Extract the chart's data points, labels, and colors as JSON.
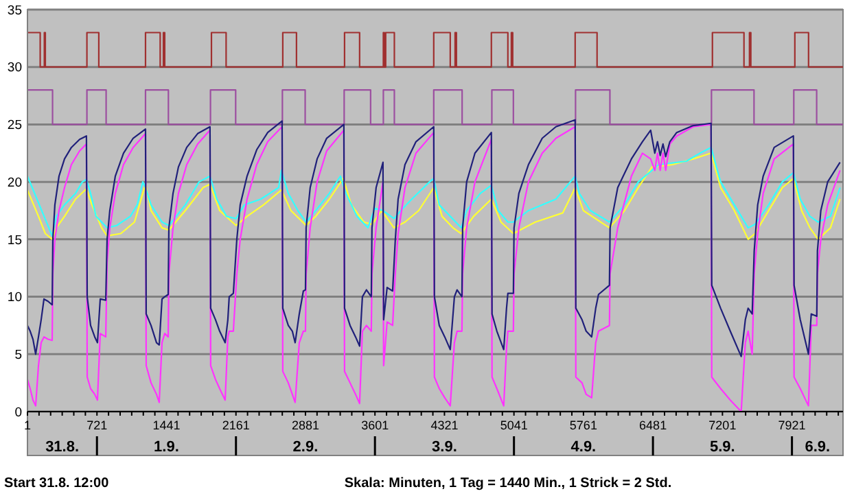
{
  "chart_data": {
    "type": "line",
    "xlim": [
      1,
      8450
    ],
    "ylim": [
      0,
      35
    ],
    "yticks": [
      0,
      5,
      10,
      15,
      20,
      25,
      30,
      35
    ],
    "xticks": [
      1,
      {
        "value": 121,
        "label": null
      },
      {
        "value": 241,
        "label": null
      },
      {
        "value": 361,
        "label": null
      },
      {
        "value": 481,
        "label": null
      },
      {
        "value": 601,
        "label": null
      },
      721,
      {
        "value": 841,
        "label": null
      },
      {
        "value": 961,
        "label": null
      },
      {
        "value": 1081,
        "label": null
      },
      {
        "value": 1201,
        "label": null
      },
      {
        "value": 1321,
        "label": null
      },
      1441,
      {
        "value": 1561,
        "label": null
      },
      {
        "value": 1681,
        "label": null
      },
      {
        "value": 1801,
        "label": null
      },
      {
        "value": 1921,
        "label": null
      },
      {
        "value": 2041,
        "label": null
      },
      2161,
      {
        "value": 2281,
        "label": null
      },
      {
        "value": 2401,
        "label": null
      },
      {
        "value": 2521,
        "label": null
      },
      {
        "value": 2641,
        "label": null
      },
      {
        "value": 2761,
        "label": null
      },
      2881,
      {
        "value": 3001,
        "label": null
      },
      {
        "value": 3121,
        "label": null
      },
      {
        "value": 3241,
        "label": null
      },
      {
        "value": 3361,
        "label": null
      },
      {
        "value": 3481,
        "label": null
      },
      3601,
      {
        "value": 3721,
        "label": null
      },
      {
        "value": 3841,
        "label": null
      },
      {
        "value": 3961,
        "label": null
      },
      {
        "value": 4081,
        "label": null
      },
      {
        "value": 4201,
        "label": null
      },
      4321,
      {
        "value": 4441,
        "label": null
      },
      {
        "value": 4561,
        "label": null
      },
      {
        "value": 4681,
        "label": null
      },
      {
        "value": 4801,
        "label": null
      },
      {
        "value": 4921,
        "label": null
      },
      5041,
      {
        "value": 5161,
        "label": null
      },
      {
        "value": 5281,
        "label": null
      },
      {
        "value": 5401,
        "label": null
      },
      {
        "value": 5521,
        "label": null
      },
      {
        "value": 5641,
        "label": null
      },
      5761,
      {
        "value": 5881,
        "label": null
      },
      {
        "value": 6001,
        "label": null
      },
      {
        "value": 6121,
        "label": null
      },
      {
        "value": 6241,
        "label": null
      },
      {
        "value": 6361,
        "label": null
      },
      6481,
      {
        "value": 6601,
        "label": null
      },
      {
        "value": 6721,
        "label": null
      },
      {
        "value": 6841,
        "label": null
      },
      {
        "value": 6961,
        "label": null
      },
      {
        "value": 7081,
        "label": null
      },
      7201,
      {
        "value": 7321,
        "label": null
      },
      {
        "value": 7441,
        "label": null
      },
      {
        "value": 7561,
        "label": null
      },
      {
        "value": 7681,
        "label": null
      },
      {
        "value": 7801,
        "label": null
      },
      7921,
      {
        "value": 8041,
        "label": null
      },
      {
        "value": 8161,
        "label": null
      },
      {
        "value": 8281,
        "label": null
      },
      {
        "value": 8401,
        "label": null
      }
    ],
    "grid": "y",
    "annotations": [
      "31.8.",
      "1.9.",
      "2.9.",
      "3.9.",
      "4.9.",
      "5.9.",
      "6.9.",
      "Start 31.8. 12:00",
      "Skala: Minuten, 1 Tag = 1440 Min., 1 Strick = 2 Std."
    ],
    "x": [
      1,
      29,
      58,
      86,
      115,
      143,
      172,
      214,
      257,
      264,
      285,
      328,
      385,
      456,
      541,
      612,
      620,
      655,
      698,
      726,
      755,
      812,
      826,
      854,
      911,
      996,
      1096,
      1224,
      1231,
      1281,
      1338,
      1366,
      1395,
      1423,
      1459,
      1466,
      1509,
      1565,
      1651,
      1764,
      1892,
      1899,
      1949,
      1992,
      2049,
      2077,
      2091,
      2134,
      2170,
      2205,
      2276,
      2376,
      2490,
      2639,
      2646,
      2703,
      2745,
      2774,
      2817,
      2859,
      2881,
      2888,
      2930,
      3002,
      3101,
      3279,
      3286,
      3343,
      3400,
      3442,
      3471,
      3513,
      3563,
      3570,
      3613,
      3684,
      3691,
      3727,
      3784,
      3812,
      3841,
      3912,
      4026,
      4210,
      4217,
      4267,
      4324,
      4381,
      4424,
      4452,
      4502,
      4509,
      4551,
      4637,
      4807,
      4814,
      4864,
      4935,
      4964,
      4978,
      5035,
      5042,
      5092,
      5191,
      5334,
      5476,
      5675,
      5682,
      5746,
      5789,
      5846,
      5888,
      5917,
      6030,
      6037,
      6116,
      6258,
      6372,
      6457,
      6500,
      6528,
      6556,
      6585,
      6613,
      6656,
      6727,
      6898,
      7083,
      7090,
      7182,
      7282,
      7395,
      7438,
      7467,
      7509,
      7530,
      7566,
      7623,
      7737,
      7936,
      7943,
      8007,
      8092,
      8121,
      8178,
      8185,
      8220,
      8291,
      8419
    ],
    "series": [
      {
        "type": "step",
        "color": "#a03030",
        "x": [
          1,
          133,
          176,
          186,
          617,
          740,
          1224,
          1376,
          1409,
          1423,
          1907,
          2059,
          2646,
          2788,
          3286,
          3442,
          3688,
          3698,
          3712,
          3802,
          4210,
          4381,
          4431,
          4445,
          4807,
          4978,
          5014,
          5028,
          5675,
          5902,
          7097,
          7424,
          7481,
          7495,
          7951,
          8093,
          8450
        ],
        "values": [
          33,
          30,
          33,
          30,
          33,
          30,
          33,
          30,
          33,
          30,
          33,
          30,
          33,
          30,
          33,
          30,
          33,
          30,
          33,
          30,
          33,
          30,
          33,
          30,
          33,
          30,
          33,
          30,
          33,
          30,
          33,
          30,
          33,
          30,
          33,
          30,
          30
        ]
      },
      {
        "type": "step",
        "color": "#9c4fa0",
        "x": [
          1,
          261,
          617,
          816,
          1224,
          1461,
          1897,
          2158,
          2642,
          2878,
          3282,
          3556,
          3688,
          3802,
          4210,
          4504,
          4812,
          5035,
          5679,
          6035,
          7087,
          7528,
          7940,
          8177,
          8450
        ],
        "values": [
          28,
          25,
          28,
          25,
          28,
          25,
          28,
          25,
          28,
          25,
          28,
          25,
          28,
          25,
          28,
          25,
          28,
          25,
          28,
          25,
          28,
          25,
          28,
          25,
          25
        ]
      },
      {
        "color": "#ffff33",
        "x": [
          1,
          115,
          186,
          257,
          300,
          385,
          499,
          612,
          669,
          769,
          826,
          968,
          1110,
          1196,
          1224,
          1281,
          1395,
          1466,
          1636,
          1821,
          1892,
          1992,
          2162,
          2276,
          2447,
          2632,
          2731,
          2888,
          2987,
          3129,
          3272,
          3357,
          3485,
          3570,
          3670,
          3798,
          3912,
          4054,
          4210,
          4296,
          4409,
          4494,
          4623,
          4807,
          4907,
          5035,
          5262,
          5547,
          5675,
          5760,
          6030,
          6187,
          6329,
          6471,
          6684,
          6898,
          7083,
          7182,
          7324,
          7467,
          7538,
          7680,
          7822,
          7936,
          8021,
          8107,
          8192,
          8320,
          8419
        ],
        "values": [
          19.3,
          17,
          15.5,
          15,
          16,
          17,
          18.5,
          19.4,
          18,
          16,
          15.3,
          15.5,
          16.5,
          19,
          19.8,
          17.5,
          16,
          15.8,
          17.5,
          19.5,
          19.8,
          17.5,
          16.2,
          17,
          18,
          19.3,
          17.5,
          16.2,
          17,
          18.5,
          20.3,
          18,
          16.5,
          16.3,
          17.5,
          16,
          16.5,
          17.5,
          19.5,
          17,
          16,
          15.5,
          17,
          18.5,
          16.5,
          15.5,
          16.5,
          17.3,
          19.5,
          17.5,
          16,
          17.5,
          19.5,
          21.3,
          21.5,
          22,
          22.5,
          19.5,
          17.5,
          15,
          15.5,
          17.5,
          19.5,
          20.3,
          17.5,
          16,
          15,
          16,
          18.5
        ]
      },
      {
        "color": "#33ffff",
        "x": [
          1,
          257,
          300,
          385,
          499,
          570,
          612,
          655,
          712,
          826,
          925,
          1067,
          1139,
          1196,
          1224,
          1281,
          1395,
          1466,
          1636,
          1779,
          1892,
          1963,
          2063,
          2162,
          2248,
          2419,
          2603,
          2632,
          2703,
          2802,
          2888,
          2987,
          3129,
          3243,
          3300,
          3414,
          3528,
          3599,
          3684,
          3798,
          3869,
          3983,
          4167,
          4210,
          4267,
          4381,
          4494,
          4551,
          4693,
          4807,
          4878,
          4978,
          5035,
          5191,
          5476,
          5675,
          5718,
          5832,
          6030,
          6187,
          6329,
          6542,
          6827,
          6969,
          7083,
          7182,
          7324,
          7467,
          7538,
          7680,
          7822,
          7936,
          8007,
          8107,
          8192,
          8320,
          8419
        ],
        "values": [
          20.5,
          15.3,
          17,
          18,
          19,
          20,
          20.2,
          19,
          17,
          16,
          16.2,
          17,
          18,
          20,
          19.5,
          18,
          16.5,
          16.2,
          18,
          20,
          20.5,
          18.5,
          17,
          16.8,
          18,
          18.5,
          19.5,
          21,
          19,
          17.5,
          16.5,
          17.5,
          19,
          20.5,
          19,
          17,
          16,
          17.7,
          17.5,
          16.8,
          17.5,
          18.5,
          20,
          20.3,
          18,
          17,
          16,
          17.5,
          19,
          19.7,
          17.5,
          16.5,
          16.5,
          17.5,
          18.5,
          20.5,
          19,
          17.5,
          16.5,
          18,
          20,
          21.5,
          21.8,
          22.5,
          23,
          20,
          18,
          16,
          16.3,
          18,
          20,
          20.8,
          18.5,
          17,
          16.5,
          17,
          19.5
        ]
      },
      {
        "color": "#ff33ff",
        "values": [
          2.8,
          2,
          1,
          0.5,
          4,
          6,
          6.5,
          6.3,
          6.2,
          12,
          15,
          17.5,
          19.5,
          21.5,
          22.7,
          23.3,
          3,
          2,
          1.5,
          1,
          6.8,
          6.5,
          13,
          16,
          19,
          21.5,
          23,
          24.2,
          4,
          2.5,
          1.5,
          0.8,
          6,
          6.8,
          6.5,
          12,
          16,
          19,
          21.5,
          23.3,
          24.5,
          4,
          2.8,
          2,
          1,
          6.5,
          7,
          7,
          12,
          15,
          18.5,
          21.5,
          23.5,
          24.8,
          3.5,
          2.5,
          1.5,
          0.8,
          6,
          7,
          7,
          12,
          16,
          20,
          22.7,
          24.5,
          3.5,
          2.5,
          1.5,
          0.7,
          7,
          7.5,
          7,
          12,
          16,
          20,
          4,
          7.8,
          7.5,
          12,
          15.5,
          19.5,
          22.5,
          24.3,
          3,
          2,
          1.2,
          0.5,
          6,
          7,
          7,
          12,
          16,
          20,
          23.7,
          3,
          2,
          0.5,
          5.5,
          7,
          7,
          12,
          16,
          20,
          22.5,
          23.8,
          24.8,
          3,
          2.5,
          1.5,
          1.2,
          6,
          7,
          7.5,
          12,
          16,
          20.5,
          22.5,
          22,
          21,
          22.5,
          21,
          22.5,
          21,
          23.3,
          24,
          24.8,
          25,
          3,
          2,
          1,
          0,
          6,
          7,
          5,
          12,
          15.5,
          19,
          22,
          23.3,
          3,
          2,
          0.5,
          7.5,
          7.5,
          12,
          15,
          18,
          21
        ]
      },
      {
        "color": "#20207a",
        "values": [
          7.5,
          7,
          6.3,
          5,
          6.5,
          8,
          9.8,
          9.6,
          9.3,
          15,
          18,
          20.5,
          22,
          23,
          23.7,
          24,
          10,
          7.5,
          6.5,
          6,
          9.8,
          9.7,
          15,
          17.5,
          20.5,
          22.5,
          23.8,
          24.6,
          8.5,
          7.5,
          6,
          5.8,
          9.8,
          10,
          10.2,
          16,
          19,
          21.3,
          23,
          24.2,
          24.8,
          9,
          8,
          7,
          6,
          8,
          10,
          10.3,
          15,
          18,
          20.5,
          22.8,
          24.3,
          25.3,
          9,
          7.5,
          7,
          6,
          8.5,
          10.5,
          10.6,
          16,
          19.5,
          22,
          23.8,
          25,
          9,
          7.5,
          6.5,
          5.7,
          10,
          10.6,
          10,
          16,
          19.5,
          21.7,
          8,
          10.8,
          10.5,
          15,
          18.5,
          21.5,
          23.5,
          24.8,
          10,
          7.5,
          6.5,
          5.4,
          10,
          10.6,
          10,
          16,
          20,
          22.5,
          24.3,
          8.5,
          7,
          5.4,
          9,
          10.3,
          10.3,
          16,
          19,
          21.5,
          23.8,
          24.8,
          25.4,
          9,
          8,
          7,
          6.5,
          9,
          10.2,
          11,
          16,
          19.5,
          22,
          23.5,
          24.5,
          22.5,
          23.5,
          22.3,
          23.3,
          22.2,
          23.5,
          24.3,
          24.9,
          25.1,
          11,
          9,
          7,
          4.8,
          8,
          9,
          8.5,
          14,
          18,
          20.5,
          23,
          24,
          11,
          8,
          5,
          8.5,
          8.3,
          14,
          17.5,
          20,
          21.7
        ]
      }
    ]
  }
}
